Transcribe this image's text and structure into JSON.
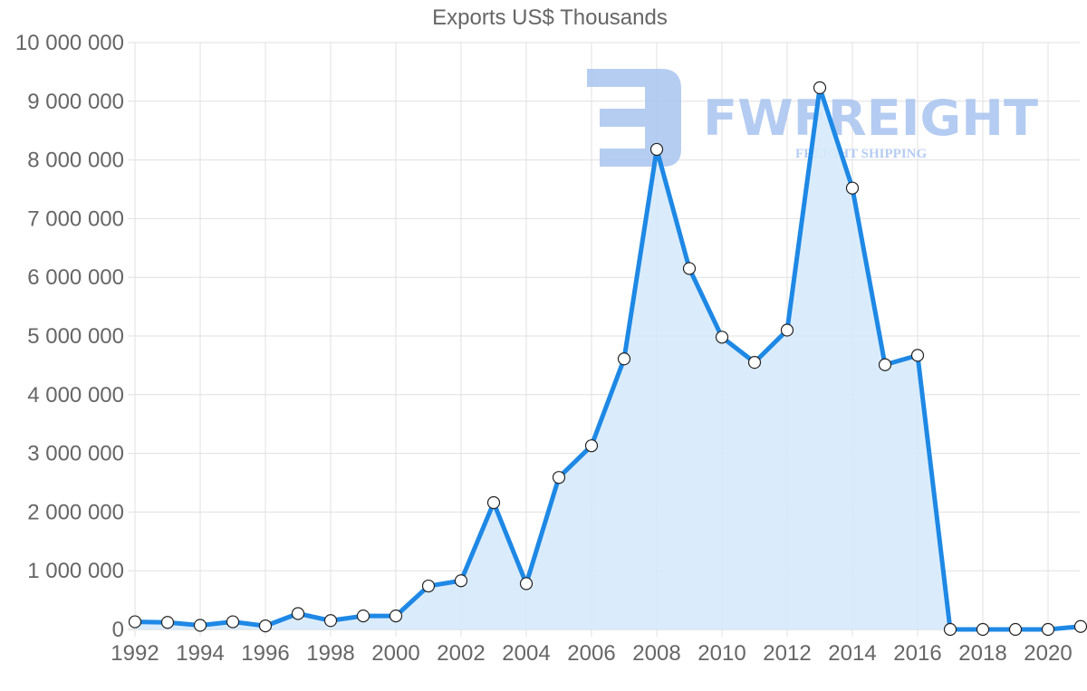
{
  "chart_data": {
    "type": "area",
    "title": "Exports US$ Thousands",
    "xlabel": "",
    "ylabel": "",
    "x": [
      1992,
      1993,
      1994,
      1995,
      1996,
      1997,
      1998,
      1999,
      2000,
      2001,
      2002,
      2003,
      2004,
      2005,
      2006,
      2007,
      2008,
      2009,
      2010,
      2011,
      2012,
      2013,
      2014,
      2015,
      2016,
      2017,
      2018,
      2019,
      2020,
      2021
    ],
    "series": [
      {
        "name": "Exports US$ Thousands",
        "values": [
          130000,
          120000,
          70000,
          130000,
          60000,
          270000,
          150000,
          230000,
          230000,
          740000,
          830000,
          2160000,
          780000,
          2590000,
          3130000,
          4610000,
          8180000,
          6150000,
          4980000,
          4550000,
          5100000,
          9230000,
          7520000,
          4510000,
          4670000,
          0,
          0,
          0,
          0,
          50000
        ]
      }
    ],
    "ylim": [
      0,
      10000000
    ],
    "yticks": [
      "0",
      "1 000 000",
      "2 000 000",
      "3 000 000",
      "4 000 000",
      "5 000 000",
      "6 000 000",
      "7 000 000",
      "8 000 000",
      "9 000 000",
      "10 000 000"
    ],
    "xticks": [
      "1992",
      "1994",
      "1996",
      "1998",
      "2000",
      "2002",
      "2004",
      "2006",
      "2008",
      "2010",
      "2012",
      "2014",
      "2016",
      "2018",
      "2020"
    ],
    "grid": true,
    "legend": "none",
    "colors": {
      "line": "#1e88e5",
      "fill": "#d6eafc",
      "point_fill": "#ffffff",
      "point_stroke": "#222222",
      "grid": "#e0e0e0",
      "text": "#666666"
    }
  },
  "watermark": {
    "brand": "FWFREIGHT",
    "tagline": "FREIGHT SHIPPING",
    "color": "#a9c4f0"
  }
}
